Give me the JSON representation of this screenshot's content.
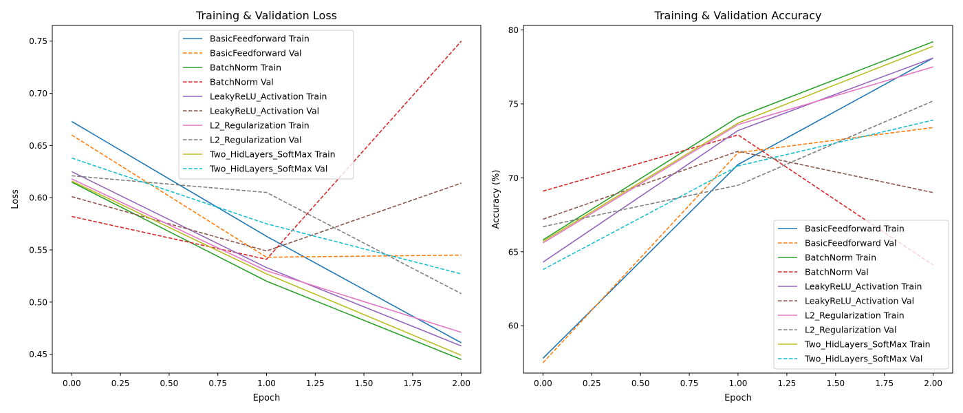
{
  "chart_data": [
    {
      "type": "line",
      "title": "Training & Validation Loss",
      "xlabel": "Epoch",
      "ylabel": "Loss",
      "xlim": [
        -0.1,
        2.1
      ],
      "ylim": [
        0.432,
        0.765
      ],
      "xticks": [
        "0.00",
        "0.25",
        "0.50",
        "0.75",
        "1.00",
        "1.25",
        "1.50",
        "1.75",
        "2.00"
      ],
      "yticks": [
        "0.45",
        "0.50",
        "0.55",
        "0.60",
        "0.65",
        "0.70",
        "0.75"
      ],
      "legend_position": "upper-center",
      "x": [
        0,
        1,
        2
      ],
      "series": [
        {
          "name": "BasicFeedforward Train",
          "color": "#1f77b4",
          "style": "solid",
          "values": [
            0.673,
            0.563,
            0.461
          ]
        },
        {
          "name": "BasicFeedforward Val",
          "color": "#ff7f0e",
          "style": "dashed",
          "values": [
            0.66,
            0.543,
            0.545
          ]
        },
        {
          "name": "BatchNorm Train",
          "color": "#2ca02c",
          "style": "solid",
          "values": [
            0.615,
            0.52,
            0.445
          ]
        },
        {
          "name": "BatchNorm Val",
          "color": "#d62728",
          "style": "dashed",
          "values": [
            0.582,
            0.541,
            0.75
          ]
        },
        {
          "name": "LeakyReLU_Activation Train",
          "color": "#9467bd",
          "style": "solid",
          "values": [
            0.625,
            0.533,
            0.458
          ]
        },
        {
          "name": "LeakyReLU_Activation Val",
          "color": "#8c564b",
          "style": "dashed",
          "values": [
            0.601,
            0.549,
            0.614
          ]
        },
        {
          "name": "L2_Regularization Train",
          "color": "#e377c2",
          "style": "solid",
          "values": [
            0.618,
            0.53,
            0.471
          ]
        },
        {
          "name": "L2_Regularization Val",
          "color": "#7f7f7f",
          "style": "dashed",
          "values": [
            0.621,
            0.605,
            0.508
          ]
        },
        {
          "name": "Two_HidLayers_SoftMax Train",
          "color": "#bcbd22",
          "style": "solid",
          "values": [
            0.616,
            0.527,
            0.449
          ]
        },
        {
          "name": "Two_HidLayers_SoftMax Val",
          "color": "#17becf",
          "style": "dashed",
          "values": [
            0.638,
            0.575,
            0.527
          ]
        }
      ]
    },
    {
      "type": "line",
      "title": "Training & Validation Accuracy",
      "xlabel": "Epoch",
      "ylabel": "Accuracy (%)",
      "xlim": [
        -0.1,
        2.1
      ],
      "ylim": [
        56.8,
        80.3
      ],
      "xticks": [
        "0.00",
        "0.25",
        "0.50",
        "0.75",
        "1.00",
        "1.25",
        "1.50",
        "1.75",
        "2.00"
      ],
      "yticks": [
        "60",
        "65",
        "70",
        "75",
        "80"
      ],
      "legend_position": "lower-right",
      "x": [
        0,
        1,
        2
      ],
      "series": [
        {
          "name": "BasicFeedforward Train",
          "color": "#1f77b4",
          "style": "solid",
          "values": [
            57.8,
            70.9,
            78.1
          ]
        },
        {
          "name": "BasicFeedforward Val",
          "color": "#ff7f0e",
          "style": "dashed",
          "values": [
            57.5,
            71.7,
            73.4
          ]
        },
        {
          "name": "BatchNorm Train",
          "color": "#2ca02c",
          "style": "solid",
          "values": [
            65.8,
            74.1,
            79.2
          ]
        },
        {
          "name": "BatchNorm Val",
          "color": "#d62728",
          "style": "dashed",
          "values": [
            69.1,
            72.9,
            64.1
          ]
        },
        {
          "name": "LeakyReLU_Activation Train",
          "color": "#9467bd",
          "style": "solid",
          "values": [
            64.3,
            73.2,
            78.1
          ]
        },
        {
          "name": "LeakyReLU_Activation Val",
          "color": "#8c564b",
          "style": "dashed",
          "values": [
            67.2,
            71.8,
            69.0
          ]
        },
        {
          "name": "L2_Regularization Train",
          "color": "#e377c2",
          "style": "solid",
          "values": [
            65.6,
            73.6,
            77.5
          ]
        },
        {
          "name": "L2_Regularization Val",
          "color": "#7f7f7f",
          "style": "dashed",
          "values": [
            66.7,
            69.5,
            75.2
          ]
        },
        {
          "name": "Two_HidLayers_SoftMax Train",
          "color": "#bcbd22",
          "style": "solid",
          "values": [
            65.7,
            73.7,
            78.9
          ]
        },
        {
          "name": "Two_HidLayers_SoftMax Val",
          "color": "#17becf",
          "style": "dashed",
          "values": [
            63.8,
            70.8,
            73.9
          ]
        }
      ]
    }
  ]
}
